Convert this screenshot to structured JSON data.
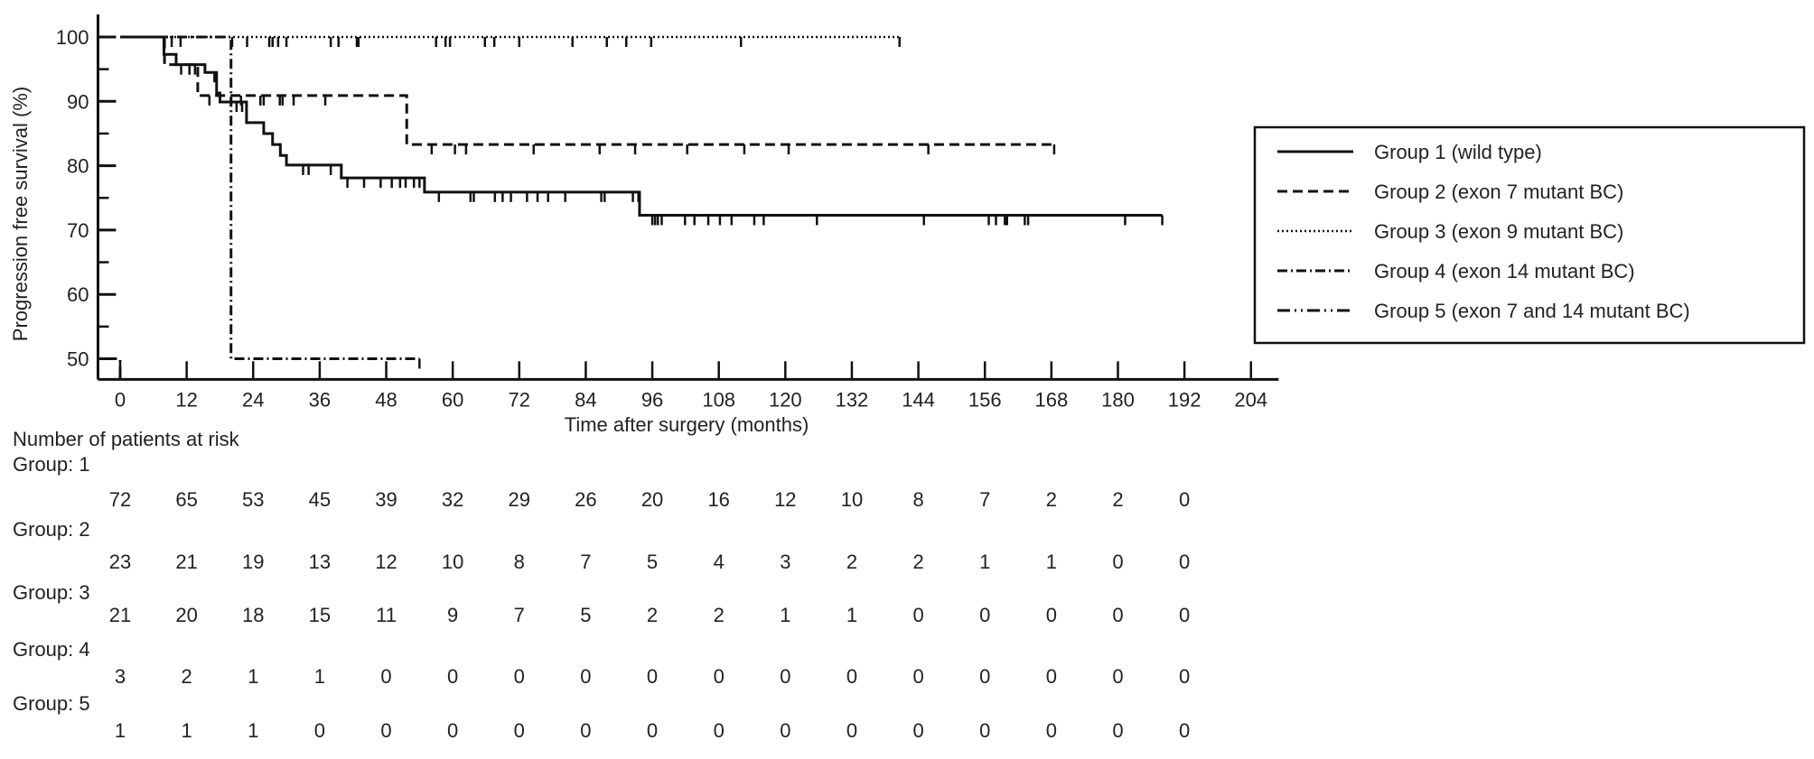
{
  "chart_data": {
    "type": "line",
    "subtype": "kaplan-meier step",
    "xlabel": "Time after surgery (months)",
    "ylabel": "Progression free survival (%)",
    "xlim": [
      -4,
      209
    ],
    "ylim": [
      46.8,
      103.5
    ],
    "xticks": [
      0,
      12,
      24,
      36,
      48,
      60,
      72,
      84,
      96,
      108,
      120,
      132,
      144,
      156,
      168,
      180,
      192,
      204
    ],
    "yticks": [
      100,
      90,
      80,
      70,
      60,
      50
    ],
    "yminor": [
      95,
      85,
      75,
      65,
      55
    ],
    "grid": false,
    "legend_position": "right",
    "series": [
      {
        "name": "Group 1 (wild type)",
        "style": "solid",
        "steps": [
          [
            0,
            100
          ],
          [
            7.9,
            97.3
          ],
          [
            10.1,
            95.7
          ],
          [
            15.3,
            94.5
          ],
          [
            17.4,
            91.3
          ],
          [
            18,
            89.9
          ],
          [
            22.8,
            86.7
          ],
          [
            25.9,
            85
          ],
          [
            27.5,
            83.3
          ],
          [
            28.9,
            81.6
          ],
          [
            30,
            80.1
          ],
          [
            39.9,
            78.1
          ],
          [
            54.9,
            75.9
          ],
          [
            93.7,
            72.3
          ]
        ],
        "end": 188,
        "censored": [
          11,
          12.5,
          13.5,
          17,
          21,
          22,
          33,
          34,
          38,
          41,
          44,
          47,
          49,
          50.5,
          51.5,
          53,
          54,
          57.5,
          63.2,
          63.8,
          67.6,
          69,
          70.5,
          73.4,
          75.3,
          77.2,
          80.3,
          86.8,
          87.4,
          92.5,
          93.5,
          96,
          96.5,
          97,
          97.7,
          101.9,
          103.6,
          106.1,
          108.2,
          110.3,
          114.4,
          116.1,
          125.7,
          145,
          156.7,
          158,
          159.6,
          160,
          163.2,
          163.8,
          181.3,
          188
        ]
      },
      {
        "name": "Group 2 (exon 7 mutant BC)",
        "style": "dashed",
        "steps": [
          [
            0,
            100
          ],
          [
            8,
            95.7
          ],
          [
            14,
            90.9
          ],
          [
            51.7,
            83.3
          ]
        ],
        "end": 168.5,
        "censored": [
          12.5,
          16.1,
          21.8,
          25.3,
          25.9,
          28.8,
          29.3,
          31.3,
          37,
          56.2,
          60.4,
          62.4,
          74.6,
          86.5,
          92.9,
          102.3,
          112.6,
          120.6,
          145.8,
          168.5
        ]
      },
      {
        "name": "Group 3 (exon 9 mutant BC)",
        "style": "dotted",
        "steps": [
          [
            0,
            100
          ]
        ],
        "end": 140.6,
        "censored": [
          9.3,
          10.9,
          20.2,
          22.9,
          26.9,
          27.5,
          28.5,
          30,
          38,
          39.4,
          42.7,
          43,
          57,
          58.7,
          59.5,
          65.8,
          67.5,
          72,
          81.6,
          87.8,
          91.3,
          95.8,
          112,
          140.6
        ]
      },
      {
        "name": "Group 4 (exon 14 mutant BC)",
        "style": "dashdot",
        "steps": [
          [
            0,
            100
          ],
          [
            20,
            50
          ]
        ],
        "end": 54,
        "censored": [
          54
        ]
      },
      {
        "name": "Group 5 (exon 7 and 14 mutant BC)",
        "style": "dashdotdot",
        "steps": [
          [
            -4,
            50
          ],
          [
            0,
            46.8
          ]
        ],
        "end": 0,
        "censored": []
      }
    ],
    "risk_table": {
      "title": "Number of patients at risk",
      "times": [
        0,
        12,
        24,
        36,
        48,
        60,
        72,
        84,
        96,
        108,
        120,
        132,
        144,
        156,
        168,
        180,
        192
      ],
      "rows": [
        {
          "label": "Group: 1",
          "values": [
            "72",
            "65",
            "53",
            "45",
            "39",
            "32",
            "29",
            "26",
            "20",
            "16",
            "12",
            "10",
            "8",
            "7",
            "2",
            "2",
            "0"
          ]
        },
        {
          "label": "Group: 2",
          "values": [
            "23",
            "21",
            "19",
            "13",
            "12",
            "10",
            "8",
            "7",
            "5",
            "4",
            "3",
            "2",
            "2",
            "1",
            "1",
            "0",
            "0"
          ]
        },
        {
          "label": "Group: 3",
          "values": [
            "21",
            "20",
            "18",
            "15",
            "11",
            "9",
            "7",
            "5",
            "2",
            "2",
            "1",
            "1",
            "0",
            "0",
            "0",
            "0",
            "0"
          ]
        },
        {
          "label": "Group: 4",
          "values": [
            "3",
            "2",
            "1",
            "1",
            "0",
            "0",
            "0",
            "0",
            "0",
            "0",
            "0",
            "0",
            "0",
            "0",
            "0",
            "0",
            "0"
          ]
        },
        {
          "label": "Group: 5",
          "values": [
            "1",
            "1",
            "1",
            "0",
            "0",
            "0",
            "0",
            "0",
            "0",
            "0",
            "0",
            "0",
            "0",
            "0",
            "0",
            "0",
            "0"
          ]
        }
      ]
    },
    "colors": {
      "line": "#111111",
      "text": "#222222"
    }
  }
}
